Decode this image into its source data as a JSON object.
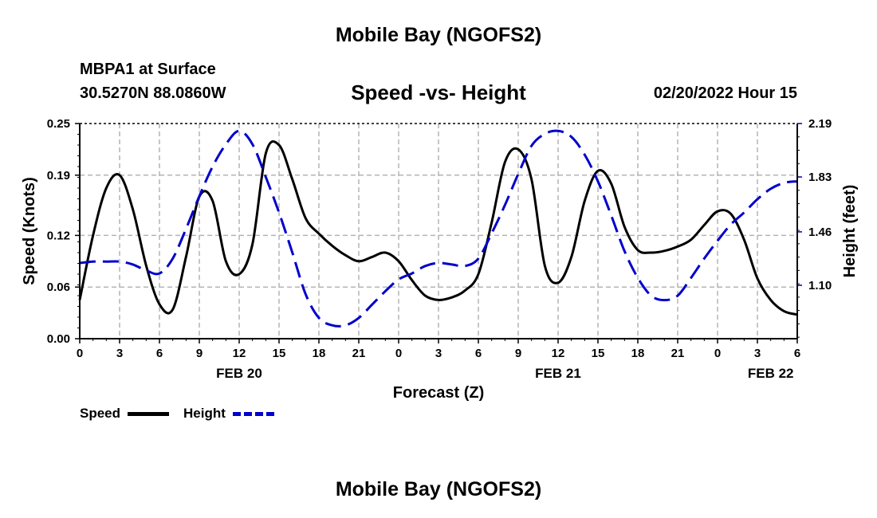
{
  "header": {
    "title": "Mobile Bay (NGOFS2)",
    "station": "MBPA1 at Surface",
    "coords": "30.5270N  88.0860W",
    "chart_title": "Speed -vs- Height",
    "timestamp": "02/20/2022 Hour 15"
  },
  "legend": {
    "speed_label": "Speed",
    "height_label": "Height"
  },
  "footer": {
    "title": "Mobile Bay (NGOFS2)"
  },
  "colors": {
    "speed": "#000000",
    "height": "#0000cc",
    "grid": "#b4b4b4"
  },
  "chart_data": {
    "type": "line",
    "xlabel": "Forecast (Z)",
    "ylabel": "Speed (Knots)",
    "y2label": "Height (feet)",
    "xlim": [
      0,
      54
    ],
    "ylim": [
      0.0,
      0.25
    ],
    "y2lim": [
      0.74,
      2.19
    ],
    "x_ticks": [
      0,
      3,
      6,
      9,
      12,
      15,
      18,
      21,
      24,
      27,
      30,
      33,
      36,
      39,
      42,
      45,
      48,
      51,
      54
    ],
    "x_tick_labels": [
      "0",
      "3",
      "6",
      "9",
      "12",
      "15",
      "18",
      "21",
      "0",
      "3",
      "6",
      "9",
      "12",
      "15",
      "18",
      "21",
      "0",
      "3",
      "6"
    ],
    "date_labels": [
      {
        "x": 12,
        "text": "FEB 20"
      },
      {
        "x": 36,
        "text": "FEB 21"
      },
      {
        "x": 52,
        "text": "FEB 22"
      }
    ],
    "y_ticks": [
      0.0,
      0.06,
      0.12,
      0.19,
      0.25
    ],
    "y_tick_labels": [
      "0.00",
      "0.06",
      "0.12",
      "0.19",
      "0.25"
    ],
    "y2_ticks": [
      1.1,
      1.46,
      1.83,
      2.19
    ],
    "y2_tick_labels": [
      "1.10",
      "1.46",
      "1.83",
      "2.19"
    ],
    "grid": true,
    "legend_position": "bottom-left",
    "series": [
      {
        "name": "Speed",
        "axis": "left",
        "style": "solid",
        "x": [
          0,
          1,
          2,
          3,
          4,
          5,
          6,
          7,
          8,
          9,
          10,
          11,
          12,
          13,
          14,
          15,
          16,
          17,
          18,
          19,
          20,
          21,
          22,
          23,
          24,
          25,
          26,
          27,
          28,
          29,
          30,
          31,
          32,
          33,
          34,
          35,
          36,
          37,
          38,
          39,
          40,
          41,
          42,
          43,
          44,
          45,
          46,
          47,
          48,
          49,
          50,
          51,
          52,
          53,
          54
        ],
        "values": [
          0.045,
          0.12,
          0.175,
          0.19,
          0.15,
          0.085,
          0.04,
          0.034,
          0.095,
          0.165,
          0.16,
          0.09,
          0.075,
          0.11,
          0.215,
          0.225,
          0.185,
          0.14,
          0.122,
          0.108,
          0.097,
          0.09,
          0.095,
          0.1,
          0.09,
          0.068,
          0.05,
          0.045,
          0.048,
          0.056,
          0.075,
          0.135,
          0.205,
          0.22,
          0.185,
          0.085,
          0.065,
          0.095,
          0.16,
          0.195,
          0.18,
          0.13,
          0.103,
          0.1,
          0.102,
          0.107,
          0.115,
          0.132,
          0.148,
          0.145,
          0.115,
          0.07,
          0.045,
          0.032,
          0.028
        ]
      },
      {
        "name": "Height",
        "axis": "right",
        "style": "dashed",
        "x": [
          0,
          1,
          2,
          3,
          4,
          5,
          6,
          7,
          8,
          9,
          10,
          11,
          12,
          13,
          14,
          15,
          16,
          17,
          18,
          19,
          20,
          21,
          22,
          23,
          24,
          25,
          26,
          27,
          28,
          29,
          30,
          31,
          32,
          33,
          34,
          35,
          36,
          37,
          38,
          39,
          40,
          41,
          42,
          43,
          44,
          45,
          46,
          47,
          48,
          49,
          50,
          51,
          52,
          53,
          54
        ],
        "values": [
          1.25,
          1.26,
          1.26,
          1.26,
          1.24,
          1.2,
          1.18,
          1.28,
          1.48,
          1.7,
          1.9,
          2.05,
          2.14,
          2.05,
          1.83,
          1.59,
          1.32,
          1.04,
          0.88,
          0.83,
          0.83,
          0.88,
          0.97,
          1.06,
          1.14,
          1.18,
          1.23,
          1.25,
          1.24,
          1.23,
          1.28,
          1.45,
          1.64,
          1.85,
          2.04,
          2.12,
          2.14,
          2.1,
          1.98,
          1.8,
          1.57,
          1.33,
          1.15,
          1.03,
          1.0,
          1.03,
          1.15,
          1.28,
          1.4,
          1.51,
          1.59,
          1.68,
          1.75,
          1.79,
          1.8
        ]
      }
    ]
  }
}
